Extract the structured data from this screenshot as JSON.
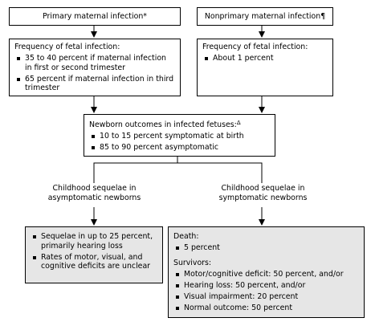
{
  "primary": {
    "label": "Primary maternal infection",
    "mark": "*"
  },
  "nonprimary": {
    "label": "Nonprimary maternal infection",
    "mark": "¶"
  },
  "primary_freq": {
    "title": "Frequency of fetal infection:",
    "items": [
      "35 to 40 percent if maternal infection in first or second trimester",
      "65 percent if maternal infection in third trimester"
    ]
  },
  "nonprimary_freq": {
    "title": "Frequency of fetal infection:",
    "items": [
      "About 1 percent"
    ]
  },
  "newborn": {
    "title": "Newborn outcomes in infected fetuses:",
    "mark": "Δ",
    "items": [
      "10 to 15 percent symptomatic at birth",
      "85 to 90 percent asymptomatic"
    ]
  },
  "asymptomatic_label": "Childhood sequelae in asymptomatic newborns",
  "symptomatic_label": "Childhood sequelae in symptomatic newborns",
  "asymptomatic_box": {
    "items": [
      "Sequelae in up to 25 percent, primarily hearing loss",
      "Rates of motor, visual, and cognitive deficits are unclear"
    ]
  },
  "symptomatic_box": {
    "death_title": "Death:",
    "death_items": [
      "5 percent"
    ],
    "survivors_title": "Survivors:",
    "survivor_items": [
      "Motor/cognitive deficit: 50 percent, and/or",
      "Hearing loss: 50 percent, and/or",
      "Visual impairment: 20 percent",
      "Normal outcome: 50 percent"
    ]
  }
}
